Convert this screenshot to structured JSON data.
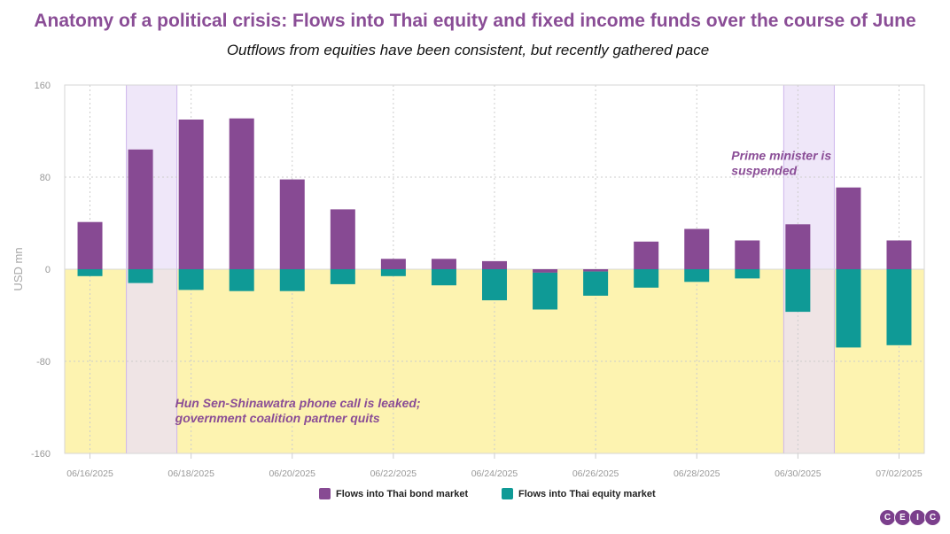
{
  "title": "Anatomy of a political crisis: Flows into Thai equity and fixed income funds over the course of June",
  "subtitle": "Outflows from equities have been consistent, but recently gathered pace",
  "logo_text": "CEIC",
  "colors": {
    "title": "#8a4d96",
    "bond": "#874a93",
    "equity": "#0f9a96",
    "negative_zone": "#fdf3b0",
    "event_band": "#e9dff7"
  },
  "chart_data": {
    "type": "bar",
    "stacked": true,
    "ylabel": "USD mn",
    "ylim": [
      -160,
      160
    ],
    "yticks": [
      160,
      80,
      0,
      -80,
      -160
    ],
    "ytick_labels": [
      "160",
      "80",
      "0",
      "-80",
      "-160"
    ],
    "grid": true,
    "legend_position": "bottom-center",
    "x_ticks": [
      "06/16/2025",
      "06/18/2025",
      "06/20/2025",
      "06/22/2025",
      "06/24/2025",
      "06/26/2025",
      "06/28/2025",
      "06/30/2025",
      "07/02/2025"
    ],
    "categories": [
      "06/16/2025",
      "06/17/2025",
      "06/18/2025",
      "06/19/2025",
      "06/20/2025",
      "06/21/2025",
      "06/22/2025",
      "06/23/2025",
      "06/24/2025",
      "06/25/2025",
      "06/26/2025",
      "06/27/2025",
      "06/28/2025",
      "06/29/2025",
      "06/30/2025",
      "07/01/2025",
      "07/02/2025"
    ],
    "series": [
      {
        "name": "Flows into Thai bond market",
        "values": [
          41,
          104,
          130,
          131,
          78,
          52,
          9,
          9,
          7,
          -3,
          -2,
          24,
          35,
          25,
          39,
          71,
          25
        ]
      },
      {
        "name": "Flows into Thai equity market",
        "values": [
          -6,
          -12,
          -18,
          -19,
          -19,
          -13,
          -6,
          -14,
          -27,
          -32,
          -21,
          -16,
          -11,
          -8,
          -37,
          -68,
          -66
        ]
      }
    ],
    "highlight_bands": [
      {
        "from": "06/17/2025",
        "to": "06/18/2025"
      },
      {
        "from": "06/30/2025",
        "to": "07/01/2025"
      }
    ],
    "shaded_region": {
      "from": 0,
      "to": -160
    },
    "annotations": [
      {
        "text": "Hun Sen-Shinawatra phone call is leaked;\ngovernment coalition partner quits",
        "x": "06/18/2025",
        "y": -120
      },
      {
        "text": "Prime minister is\nsuspended",
        "x": "06/29/2025",
        "y": 95
      }
    ]
  }
}
